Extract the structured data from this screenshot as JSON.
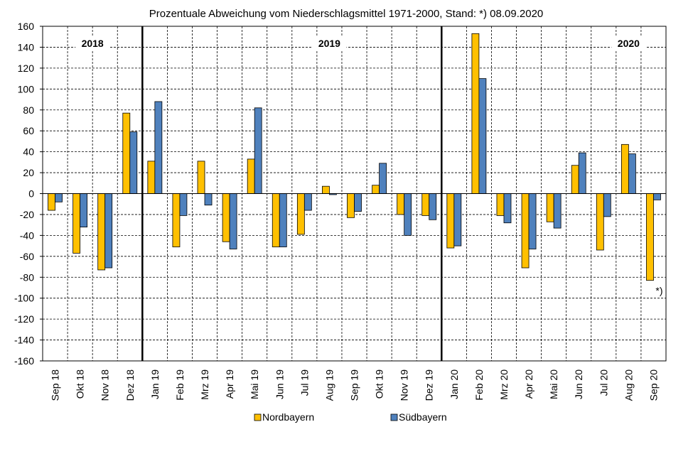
{
  "chart_data": {
    "type": "bar",
    "title": "Prozentuale Abweichung vom Niederschlagsmittel 1971-2000, Stand: *) 08.09.2020",
    "categories": [
      "Sep 18",
      "Okt 18",
      "Nov 18",
      "Dez 18",
      "Jan 19",
      "Feb 19",
      "Mrz 19",
      "Apr 19",
      "Mai 19",
      "Jun 19",
      "Jul 19",
      "Aug 19",
      "Sep 19",
      "Okt 19",
      "Nov 19",
      "Dez 19",
      "Jan 20",
      "Feb 20",
      "Mrz 20",
      "Apr 20",
      "Mai 20",
      "Jun 20",
      "Jul 20",
      "Aug 20",
      "Sep 20"
    ],
    "series": [
      {
        "name": "Nordbayern",
        "color": "#FFC000",
        "values": [
          -16,
          -57,
          -73,
          77,
          31,
          -51,
          31,
          -46,
          33,
          -51,
          -39,
          7,
          -23,
          8,
          -20,
          -21,
          -52,
          153,
          -21,
          -71,
          -27,
          27,
          -54,
          47,
          -83
        ]
      },
      {
        "name": "Südbayern",
        "color": "#4F81BD",
        "values": [
          -8,
          -32,
          -71,
          59,
          88,
          -21,
          -11,
          -53,
          82,
          -51,
          -16,
          -1,
          -17,
          29,
          -40,
          -25,
          -50,
          110,
          -28,
          -53,
          -33,
          39,
          -22,
          38,
          -6
        ]
      }
    ],
    "ylim": [
      -160,
      160
    ],
    "yticks": [
      160,
      140,
      120,
      100,
      80,
      60,
      40,
      20,
      0,
      -20,
      -40,
      -60,
      -80,
      -100,
      -120,
      -140,
      -160
    ],
    "grid": true,
    "legend_position": "bottom",
    "year_labels": [
      {
        "text": "2018",
        "category": "Okt 18"
      },
      {
        "text": "2019",
        "category": "Aug 19"
      },
      {
        "text": "2020",
        "category": "Aug 20"
      }
    ],
    "year_dividers_after": [
      "Dez 18",
      "Dez 19"
    ],
    "annotation": {
      "text": "*)",
      "category": "Sep 20"
    }
  }
}
